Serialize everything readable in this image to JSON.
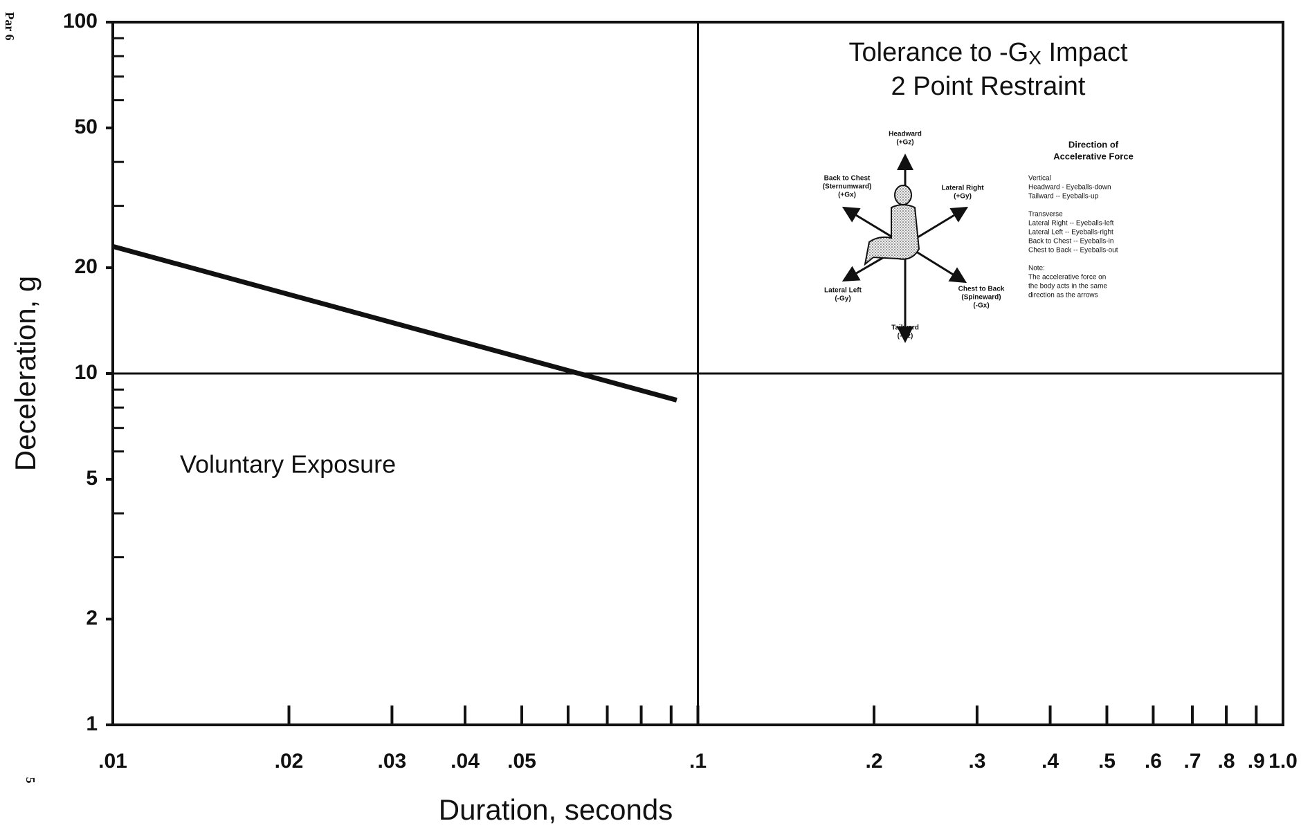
{
  "chart_data": {
    "type": "line",
    "page_marks": {
      "header": "Par 6",
      "page_number": "5"
    },
    "title": {
      "prefix": "Tolerance to -G",
      "subscript": "X",
      "suffix": " Impact"
    },
    "subtitle": "2 Point Restraint",
    "x_label": "Duration, seconds",
    "y_label": "Deceleration, g",
    "annotation": "Voluntary Exposure",
    "xscale": "log",
    "yscale": "log",
    "xlim": [
      0.01,
      1.0
    ],
    "ylim": [
      1,
      100
    ],
    "xticks": [
      {
        "value": 0.01,
        "label": ".01"
      },
      {
        "value": 0.02,
        "label": ".02"
      },
      {
        "value": 0.03,
        "label": ".03"
      },
      {
        "value": 0.04,
        "label": ".04"
      },
      {
        "value": 0.05,
        "label": ".05"
      },
      {
        "value": 0.06,
        "label": null
      },
      {
        "value": 0.07,
        "label": null
      },
      {
        "value": 0.08,
        "label": null
      },
      {
        "value": 0.09,
        "label": null
      },
      {
        "value": 0.1,
        "label": ".1"
      },
      {
        "value": 0.2,
        "label": ".2"
      },
      {
        "value": 0.3,
        "label": ".3"
      },
      {
        "value": 0.4,
        "label": ".4"
      },
      {
        "value": 0.5,
        "label": ".5"
      },
      {
        "value": 0.6,
        "label": ".6"
      },
      {
        "value": 0.7,
        "label": ".7"
      },
      {
        "value": 0.8,
        "label": ".8"
      },
      {
        "value": 0.9,
        "label": ".9"
      },
      {
        "value": 1.0,
        "label": "1.0"
      }
    ],
    "yticks": [
      1,
      2,
      5,
      10,
      20,
      50,
      100
    ],
    "yminorticks": [
      3,
      4,
      6,
      7,
      8,
      9,
      30,
      40,
      60,
      70,
      80,
      90
    ],
    "grid_x": [
      0.1
    ],
    "grid_y": [
      10
    ],
    "x": [
      0.01,
      0.092
    ],
    "series": [
      {
        "color": "#111111",
        "values": [
          23,
          8.4
        ]
      }
    ],
    "inset": {
      "arrow_labels": {
        "up": [
          "Headward",
          "(+Gz)"
        ],
        "down": [
          "Tailward",
          "(-Gz)"
        ],
        "upper_left": [
          "Back to Chest",
          "(Sternumward)",
          "(+Gx)"
        ],
        "upper_right": [
          "Lateral Right",
          "(+Gy)"
        ],
        "lower_left": [
          "Lateral Left",
          "(-Gy)"
        ],
        "lower_right": [
          "Chest to Back",
          "(Spineward)",
          "(-Gx)"
        ]
      },
      "legend_title": [
        "Direction of",
        "Accelerative Force"
      ],
      "legend_lines": [
        "Vertical",
        "Headward  -  Eyeballs-down",
        "Tailward  --  Eyeballs-up",
        "",
        "Transverse",
        "Lateral Right  -- Eyeballs-left",
        "Lateral Left    -- Eyeballs-right",
        "Back to Chest -- Eyeballs-in",
        "Chest to Back -- Eyeballs-out",
        "",
        "Note:",
        "The accelerative force on",
        "the body acts in the same",
        "direction as the arrows"
      ]
    }
  }
}
